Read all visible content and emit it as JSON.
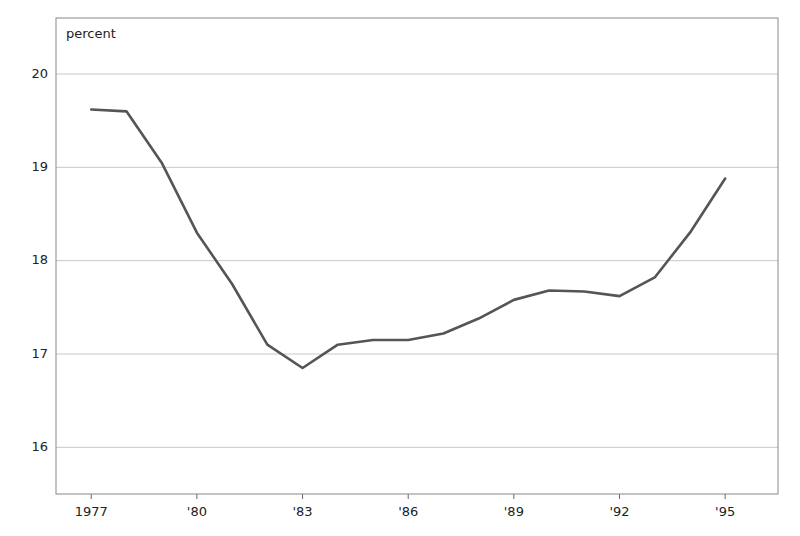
{
  "chart_data": {
    "type": "line",
    "ylabel": "percent",
    "x": [
      1977,
      1978,
      1979,
      1980,
      1981,
      1982,
      1983,
      1984,
      1985,
      1986,
      1987,
      1988,
      1989,
      1990,
      1991,
      1992,
      1993,
      1994,
      1995
    ],
    "values": [
      19.62,
      19.6,
      19.05,
      18.3,
      17.75,
      17.1,
      16.85,
      17.1,
      17.15,
      17.15,
      17.22,
      17.38,
      17.58,
      17.68,
      17.67,
      17.62,
      17.82,
      18.3,
      18.88
    ],
    "color": "#555555",
    "xlim": [
      1976.0,
      1996.5
    ],
    "xticks": [
      1977,
      {
        "value": 1980,
        "label": "'80"
      },
      {
        "value": 1983,
        "label": "'83"
      },
      {
        "value": 1986,
        "label": "'86"
      },
      {
        "value": 1989,
        "label": "'89"
      },
      {
        "value": 1992,
        "label": "'92"
      },
      {
        "value": 1995,
        "label": "'95"
      }
    ],
    "ylim": [
      15.5,
      20.6
    ],
    "yticks": [
      16,
      17,
      18,
      19,
      20
    ],
    "grid": true
  }
}
